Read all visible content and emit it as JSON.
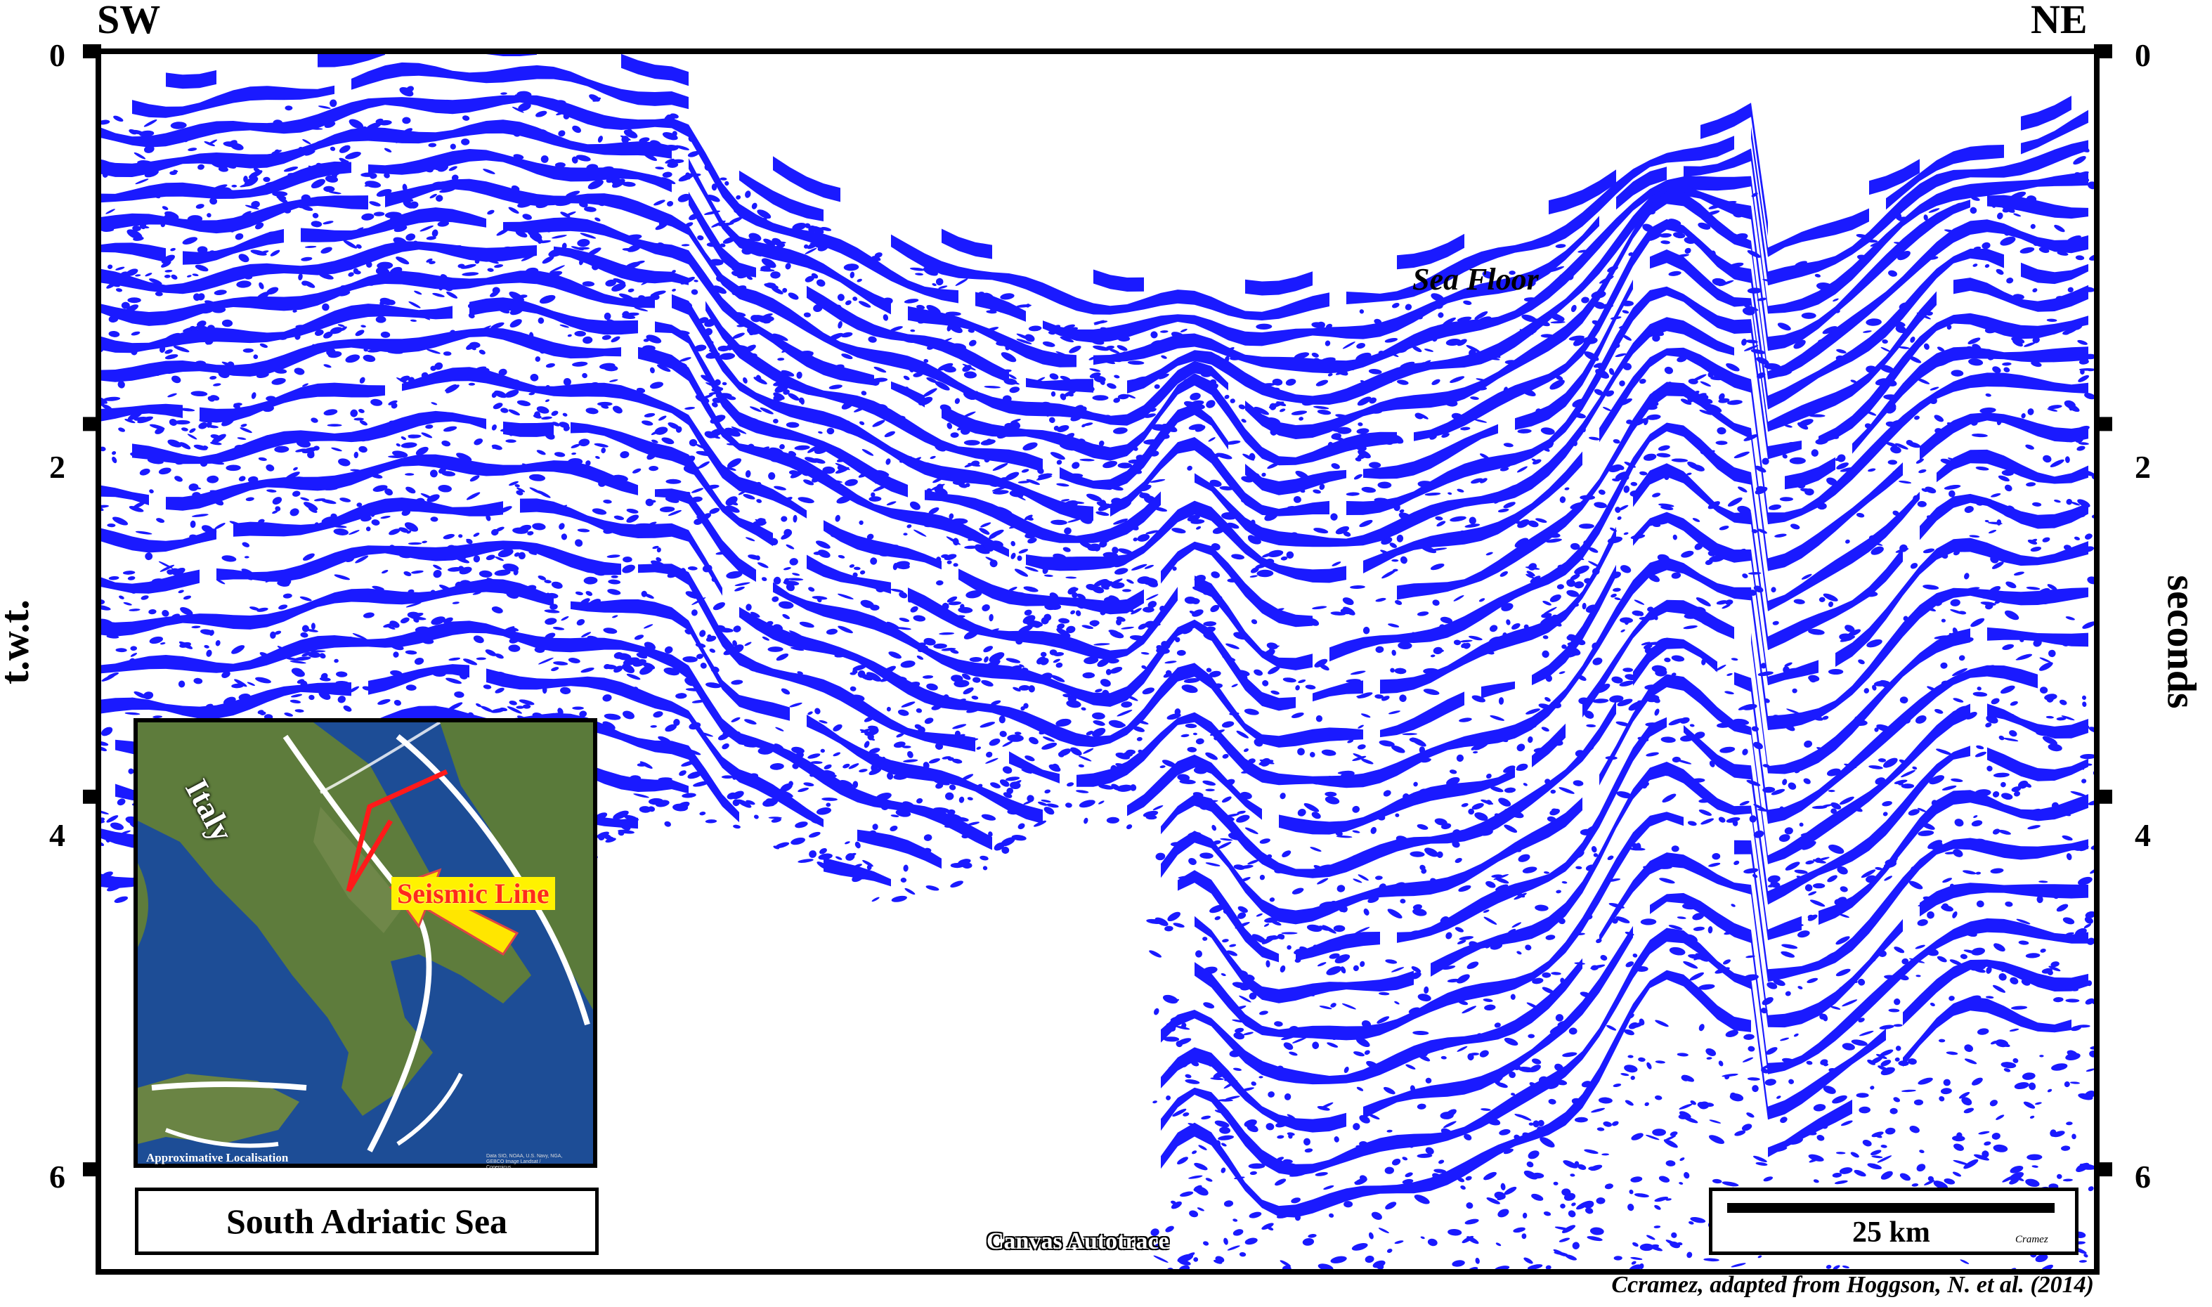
{
  "directions": {
    "left": "SW",
    "right": "NE"
  },
  "axis": {
    "left_title": "t.w.t.",
    "right_title": "seconds",
    "ticks": [
      "0",
      "2",
      "4",
      "6"
    ],
    "range_seconds": [
      0,
      6.55
    ]
  },
  "labels": {
    "sea_floor": "Sea Floor",
    "watermark": "Canvas Autotrace",
    "source": "Ccramez, adapted from Hoggson, N. et al. (2014)"
  },
  "inset_map": {
    "country_label": "Italy",
    "line_label": "Seismic Line",
    "caption": "Approximative Localisation",
    "imagery_credit": "Data SIO, NOAA, U.S. Navy, NGA, GEBCO Image Landsat / Copernicus"
  },
  "region_title": "South Adriatic Sea",
  "scale_bar": {
    "label": "25 km",
    "signature": "Cramez"
  },
  "colors": {
    "reflector": "#1a1aff",
    "frame": "#000000",
    "background": "#ffffff",
    "sea": "#1d4d96",
    "land": "#5d7a3a",
    "line": "#ff1a1a",
    "arrow": "#ffe600"
  },
  "icons": {
    "scale_bar": "scale-bar-icon",
    "arrow": "pointer-arrow-icon"
  }
}
